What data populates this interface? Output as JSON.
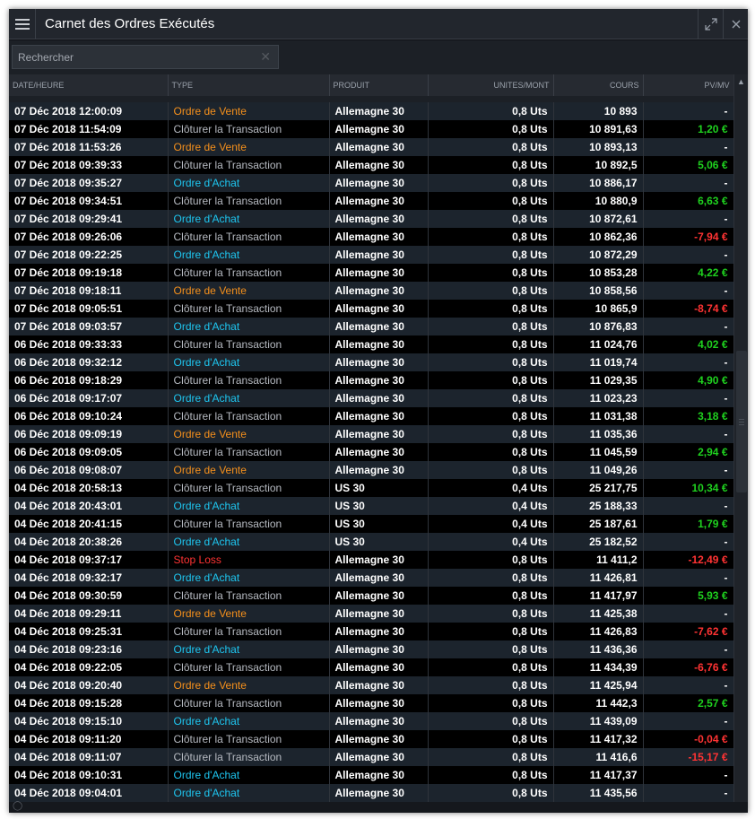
{
  "window": {
    "title": "Carnet des Ordres Exécutés",
    "icons": {
      "menu": "hamburger-icon",
      "expand": "expand-icon",
      "close": "close-icon"
    }
  },
  "search": {
    "placeholder": "Rechercher",
    "value": "",
    "clear_icon": "✕"
  },
  "colors": {
    "vente": "#f5901c",
    "achat": "#1ec6f0",
    "cloture": "#b6bac1",
    "stop": "#ff3333",
    "profit": "#1fd11f",
    "loss": "#ff3333",
    "neutral": "#ffffff"
  },
  "table": {
    "columns": [
      "DATE/HEURE",
      "TYPE",
      "PRODUIT",
      "UNITES/MONT",
      "COURS",
      "PV/MV"
    ],
    "rows": [
      {
        "date": "07 Déc 2018 12:00:09",
        "type": "Ordre de Vente",
        "kind": "vente",
        "product": "Allemagne 30",
        "units": "0,8 Uts",
        "price": "10 893",
        "pnl": "-",
        "pnl_kind": "neutral"
      },
      {
        "date": "07 Déc 2018 11:54:09",
        "type": "Clôturer la Transaction",
        "kind": "cloture",
        "product": "Allemagne 30",
        "units": "0,8 Uts",
        "price": "10 891,63",
        "pnl": "1,20 €",
        "pnl_kind": "profit"
      },
      {
        "date": "07 Déc 2018 11:53:26",
        "type": "Ordre de Vente",
        "kind": "vente",
        "product": "Allemagne 30",
        "units": "0,8 Uts",
        "price": "10 893,13",
        "pnl": "-",
        "pnl_kind": "neutral"
      },
      {
        "date": "07 Déc 2018 09:39:33",
        "type": "Clôturer la Transaction",
        "kind": "cloture",
        "product": "Allemagne 30",
        "units": "0,8 Uts",
        "price": "10 892,5",
        "pnl": "5,06 €",
        "pnl_kind": "profit"
      },
      {
        "date": "07 Déc 2018 09:35:27",
        "type": "Ordre d'Achat",
        "kind": "achat",
        "product": "Allemagne 30",
        "units": "0,8 Uts",
        "price": "10 886,17",
        "pnl": "-",
        "pnl_kind": "neutral"
      },
      {
        "date": "07 Déc 2018 09:34:51",
        "type": "Clôturer la Transaction",
        "kind": "cloture",
        "product": "Allemagne 30",
        "units": "0,8 Uts",
        "price": "10 880,9",
        "pnl": "6,63 €",
        "pnl_kind": "profit"
      },
      {
        "date": "07 Déc 2018 09:29:41",
        "type": "Ordre d'Achat",
        "kind": "achat",
        "product": "Allemagne 30",
        "units": "0,8 Uts",
        "price": "10 872,61",
        "pnl": "-",
        "pnl_kind": "neutral"
      },
      {
        "date": "07 Déc 2018 09:26:06",
        "type": "Clôturer la Transaction",
        "kind": "cloture",
        "product": "Allemagne 30",
        "units": "0,8 Uts",
        "price": "10 862,36",
        "pnl": "-7,94 €",
        "pnl_kind": "loss"
      },
      {
        "date": "07 Déc 2018 09:22:25",
        "type": "Ordre d'Achat",
        "kind": "achat",
        "product": "Allemagne 30",
        "units": "0,8 Uts",
        "price": "10 872,29",
        "pnl": "-",
        "pnl_kind": "neutral"
      },
      {
        "date": "07 Déc 2018 09:19:18",
        "type": "Clôturer la Transaction",
        "kind": "cloture",
        "product": "Allemagne 30",
        "units": "0,8 Uts",
        "price": "10 853,28",
        "pnl": "4,22 €",
        "pnl_kind": "profit"
      },
      {
        "date": "07 Déc 2018 09:18:11",
        "type": "Ordre de Vente",
        "kind": "vente",
        "product": "Allemagne 30",
        "units": "0,8 Uts",
        "price": "10 858,56",
        "pnl": "-",
        "pnl_kind": "neutral"
      },
      {
        "date": "07 Déc 2018 09:05:51",
        "type": "Clôturer la Transaction",
        "kind": "cloture",
        "product": "Allemagne 30",
        "units": "0,8 Uts",
        "price": "10 865,9",
        "pnl": "-8,74 €",
        "pnl_kind": "loss"
      },
      {
        "date": "07 Déc 2018 09:03:57",
        "type": "Ordre d'Achat",
        "kind": "achat",
        "product": "Allemagne 30",
        "units": "0,8 Uts",
        "price": "10 876,83",
        "pnl": "-",
        "pnl_kind": "neutral"
      },
      {
        "date": "06 Déc 2018 09:33:33",
        "type": "Clôturer la Transaction",
        "kind": "cloture",
        "product": "Allemagne 30",
        "units": "0,8 Uts",
        "price": "11 024,76",
        "pnl": "4,02 €",
        "pnl_kind": "profit"
      },
      {
        "date": "06 Déc 2018 09:32:12",
        "type": "Ordre d'Achat",
        "kind": "achat",
        "product": "Allemagne 30",
        "units": "0,8 Uts",
        "price": "11 019,74",
        "pnl": "-",
        "pnl_kind": "neutral"
      },
      {
        "date": "06 Déc 2018 09:18:29",
        "type": "Clôturer la Transaction",
        "kind": "cloture",
        "product": "Allemagne 30",
        "units": "0,8 Uts",
        "price": "11 029,35",
        "pnl": "4,90 €",
        "pnl_kind": "profit"
      },
      {
        "date": "06 Déc 2018 09:17:07",
        "type": "Ordre d'Achat",
        "kind": "achat",
        "product": "Allemagne 30",
        "units": "0,8 Uts",
        "price": "11 023,23",
        "pnl": "-",
        "pnl_kind": "neutral"
      },
      {
        "date": "06 Déc 2018 09:10:24",
        "type": "Clôturer la Transaction",
        "kind": "cloture",
        "product": "Allemagne 30",
        "units": "0,8 Uts",
        "price": "11 031,38",
        "pnl": "3,18 €",
        "pnl_kind": "profit"
      },
      {
        "date": "06 Déc 2018 09:09:19",
        "type": "Ordre de Vente",
        "kind": "vente",
        "product": "Allemagne 30",
        "units": "0,8 Uts",
        "price": "11 035,36",
        "pnl": "-",
        "pnl_kind": "neutral"
      },
      {
        "date": "06 Déc 2018 09:09:05",
        "type": "Clôturer la Transaction",
        "kind": "cloture",
        "product": "Allemagne 30",
        "units": "0,8 Uts",
        "price": "11 045,59",
        "pnl": "2,94 €",
        "pnl_kind": "profit"
      },
      {
        "date": "06 Déc 2018 09:08:07",
        "type": "Ordre de Vente",
        "kind": "vente",
        "product": "Allemagne 30",
        "units": "0,8 Uts",
        "price": "11 049,26",
        "pnl": "-",
        "pnl_kind": "neutral"
      },
      {
        "date": "04 Déc 2018 20:58:13",
        "type": "Clôturer la Transaction",
        "kind": "cloture",
        "product": "US 30",
        "units": "0,4 Uts",
        "price": "25 217,75",
        "pnl": "10,34 €",
        "pnl_kind": "profit"
      },
      {
        "date": "04 Déc 2018 20:43:01",
        "type": "Ordre d'Achat",
        "kind": "achat",
        "product": "US 30",
        "units": "0,4 Uts",
        "price": "25 188,33",
        "pnl": "-",
        "pnl_kind": "neutral"
      },
      {
        "date": "04 Déc 2018 20:41:15",
        "type": "Clôturer la Transaction",
        "kind": "cloture",
        "product": "US 30",
        "units": "0,4 Uts",
        "price": "25 187,61",
        "pnl": "1,79 €",
        "pnl_kind": "profit"
      },
      {
        "date": "04 Déc 2018 20:38:26",
        "type": "Ordre d'Achat",
        "kind": "achat",
        "product": "US 30",
        "units": "0,4 Uts",
        "price": "25 182,52",
        "pnl": "-",
        "pnl_kind": "neutral"
      },
      {
        "date": "04 Déc 2018 09:37:17",
        "type": "Stop Loss",
        "kind": "stop",
        "product": "Allemagne 30",
        "units": "0,8 Uts",
        "price": "11 411,2",
        "pnl": "-12,49 €",
        "pnl_kind": "loss"
      },
      {
        "date": "04 Déc 2018 09:32:17",
        "type": "Ordre d'Achat",
        "kind": "achat",
        "product": "Allemagne 30",
        "units": "0,8 Uts",
        "price": "11 426,81",
        "pnl": "-",
        "pnl_kind": "neutral"
      },
      {
        "date": "04 Déc 2018 09:30:59",
        "type": "Clôturer la Transaction",
        "kind": "cloture",
        "product": "Allemagne 30",
        "units": "0,8 Uts",
        "price": "11 417,97",
        "pnl": "5,93 €",
        "pnl_kind": "profit"
      },
      {
        "date": "04 Déc 2018 09:29:11",
        "type": "Ordre de Vente",
        "kind": "vente",
        "product": "Allemagne 30",
        "units": "0,8 Uts",
        "price": "11 425,38",
        "pnl": "-",
        "pnl_kind": "neutral"
      },
      {
        "date": "04 Déc 2018 09:25:31",
        "type": "Clôturer la Transaction",
        "kind": "cloture",
        "product": "Allemagne 30",
        "units": "0,8 Uts",
        "price": "11 426,83",
        "pnl": "-7,62 €",
        "pnl_kind": "loss"
      },
      {
        "date": "04 Déc 2018 09:23:16",
        "type": "Ordre d'Achat",
        "kind": "achat",
        "product": "Allemagne 30",
        "units": "0,8 Uts",
        "price": "11 436,36",
        "pnl": "-",
        "pnl_kind": "neutral"
      },
      {
        "date": "04 Déc 2018 09:22:05",
        "type": "Clôturer la Transaction",
        "kind": "cloture",
        "product": "Allemagne 30",
        "units": "0,8 Uts",
        "price": "11 434,39",
        "pnl": "-6,76 €",
        "pnl_kind": "loss"
      },
      {
        "date": "04 Déc 2018 09:20:40",
        "type": "Ordre de Vente",
        "kind": "vente",
        "product": "Allemagne 30",
        "units": "0,8 Uts",
        "price": "11 425,94",
        "pnl": "-",
        "pnl_kind": "neutral"
      },
      {
        "date": "04 Déc 2018 09:15:28",
        "type": "Clôturer la Transaction",
        "kind": "cloture",
        "product": "Allemagne 30",
        "units": "0,8 Uts",
        "price": "11 442,3",
        "pnl": "2,57 €",
        "pnl_kind": "profit"
      },
      {
        "date": "04 Déc 2018 09:15:10",
        "type": "Ordre d'Achat",
        "kind": "achat",
        "product": "Allemagne 30",
        "units": "0,8 Uts",
        "price": "11 439,09",
        "pnl": "-",
        "pnl_kind": "neutral"
      },
      {
        "date": "04 Déc 2018 09:11:20",
        "type": "Clôturer la Transaction",
        "kind": "cloture",
        "product": "Allemagne 30",
        "units": "0,8 Uts",
        "price": "11 417,32",
        "pnl": "-0,04 €",
        "pnl_kind": "loss"
      },
      {
        "date": "04 Déc 2018 09:11:07",
        "type": "Clôturer la Transaction",
        "kind": "cloture",
        "product": "Allemagne 30",
        "units": "0,8 Uts",
        "price": "11 416,6",
        "pnl": "-15,17 €",
        "pnl_kind": "loss"
      },
      {
        "date": "04 Déc 2018 09:10:31",
        "type": "Ordre d'Achat",
        "kind": "achat",
        "product": "Allemagne 30",
        "units": "0,8 Uts",
        "price": "11 417,37",
        "pnl": "-",
        "pnl_kind": "neutral"
      },
      {
        "date": "04 Déc 2018 09:04:01",
        "type": "Ordre d'Achat",
        "kind": "achat",
        "product": "Allemagne 30",
        "units": "0,8 Uts",
        "price": "11 435,56",
        "pnl": "-",
        "pnl_kind": "neutral"
      }
    ]
  },
  "scrollbar": {
    "up_icon": "▲",
    "down_icon": "▼",
    "position_fraction": 0.38
  },
  "status": {
    "hint_icon": "bulb-icon"
  }
}
